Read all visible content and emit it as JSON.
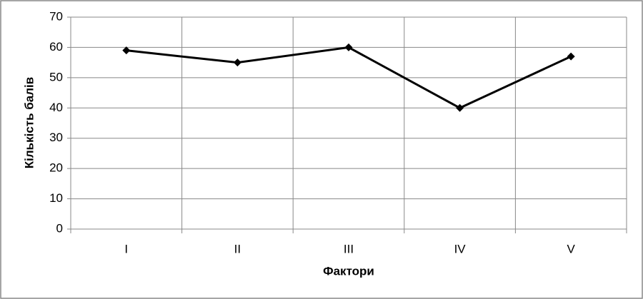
{
  "chart_data": {
    "type": "line",
    "xlabel": "Фактори",
    "ylabel": "Кількість балів",
    "categories": [
      "I",
      "II",
      "III",
      "IV",
      "V"
    ],
    "series": [
      {
        "name": "Кількість балів",
        "color": "#000000",
        "values": [
          59,
          55,
          60,
          40,
          57
        ]
      }
    ],
    "ylim": [
      0,
      70
    ],
    "yticks": [
      0,
      10,
      20,
      30,
      40,
      50,
      60,
      70
    ],
    "grid": true
  }
}
